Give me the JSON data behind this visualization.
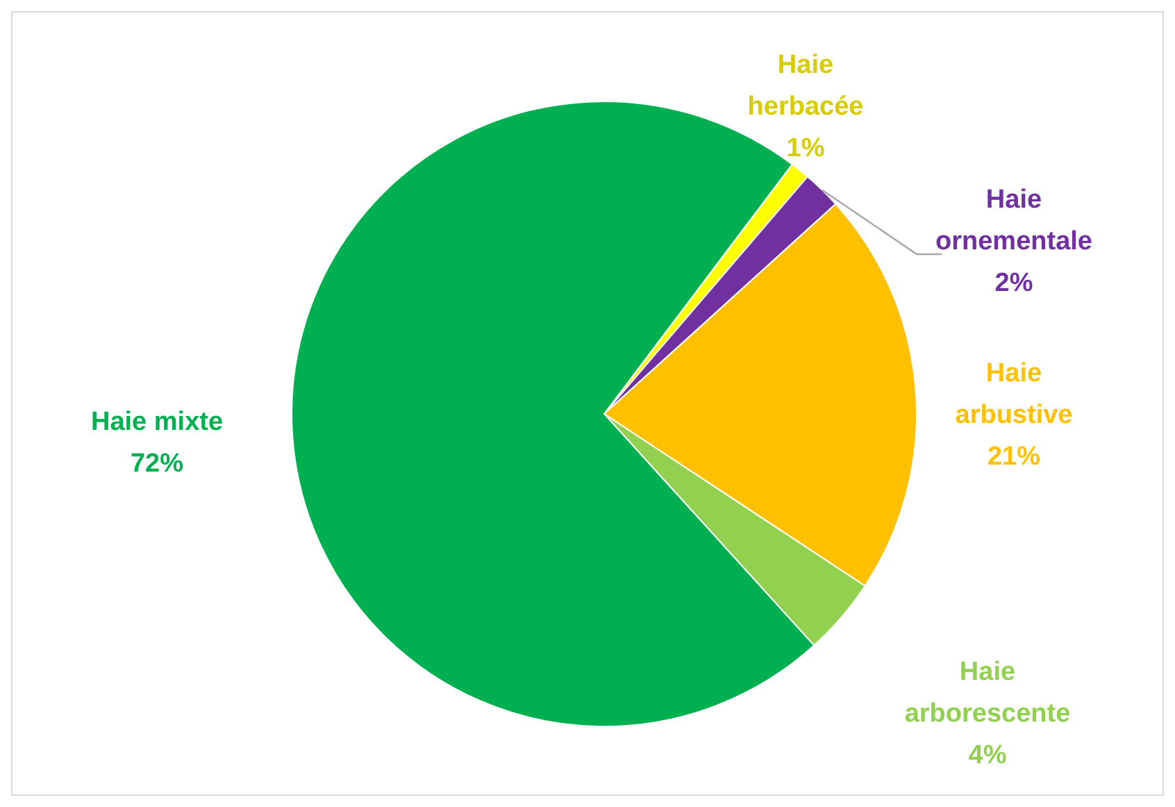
{
  "chart_data": {
    "type": "pie",
    "categories": [
      "Haie herbacée",
      "Haie ornementale",
      "Haie arbustive",
      "Haie arborescente",
      "Haie mixte"
    ],
    "values": [
      1,
      2,
      21,
      4,
      72
    ],
    "colors": [
      "#ffff00",
      "#7030a0",
      "#ffc000",
      "#92d050",
      "#00b050"
    ],
    "value_labels": [
      "1%",
      "2%",
      "21%",
      "4%",
      "72%"
    ]
  }
}
